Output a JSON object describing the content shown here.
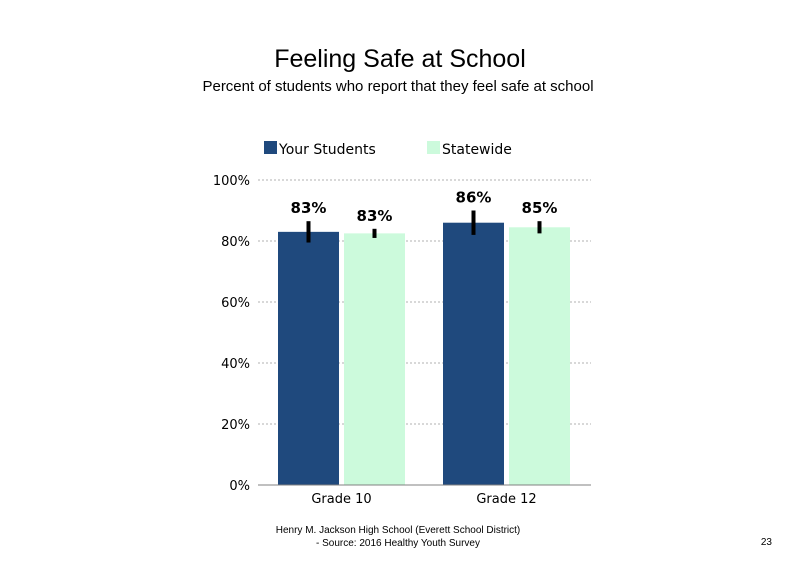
{
  "slide": {
    "title": "Feeling Safe at School",
    "subtitle": "Percent of students who report that they feel safe at school",
    "footer_line1": "Henry M. Jackson High School (Everett School District)",
    "footer_line2": "- Source: 2016 Healthy Youth Survey",
    "page_number": "23"
  },
  "chart_data": {
    "type": "bar",
    "categories": [
      "Grade 10",
      "Grade 12"
    ],
    "series": [
      {
        "name": "Your Students",
        "color": "#1f497d",
        "values": [
          83,
          86
        ],
        "labels": [
          "83%",
          "86%"
        ],
        "error": [
          3.5,
          4
        ]
      },
      {
        "name": "Statewide",
        "color": "#ccfadc",
        "values": [
          82.5,
          84.5
        ],
        "labels": [
          "83%",
          "85%"
        ],
        "error": [
          1.5,
          2
        ]
      }
    ],
    "ylim": [
      0,
      100
    ],
    "yticks": [
      0,
      20,
      40,
      60,
      80,
      100
    ],
    "ytick_labels": [
      "0%",
      "20%",
      "40%",
      "60%",
      "80%",
      "100%"
    ],
    "grid": "dotted",
    "legend_position": "top"
  }
}
